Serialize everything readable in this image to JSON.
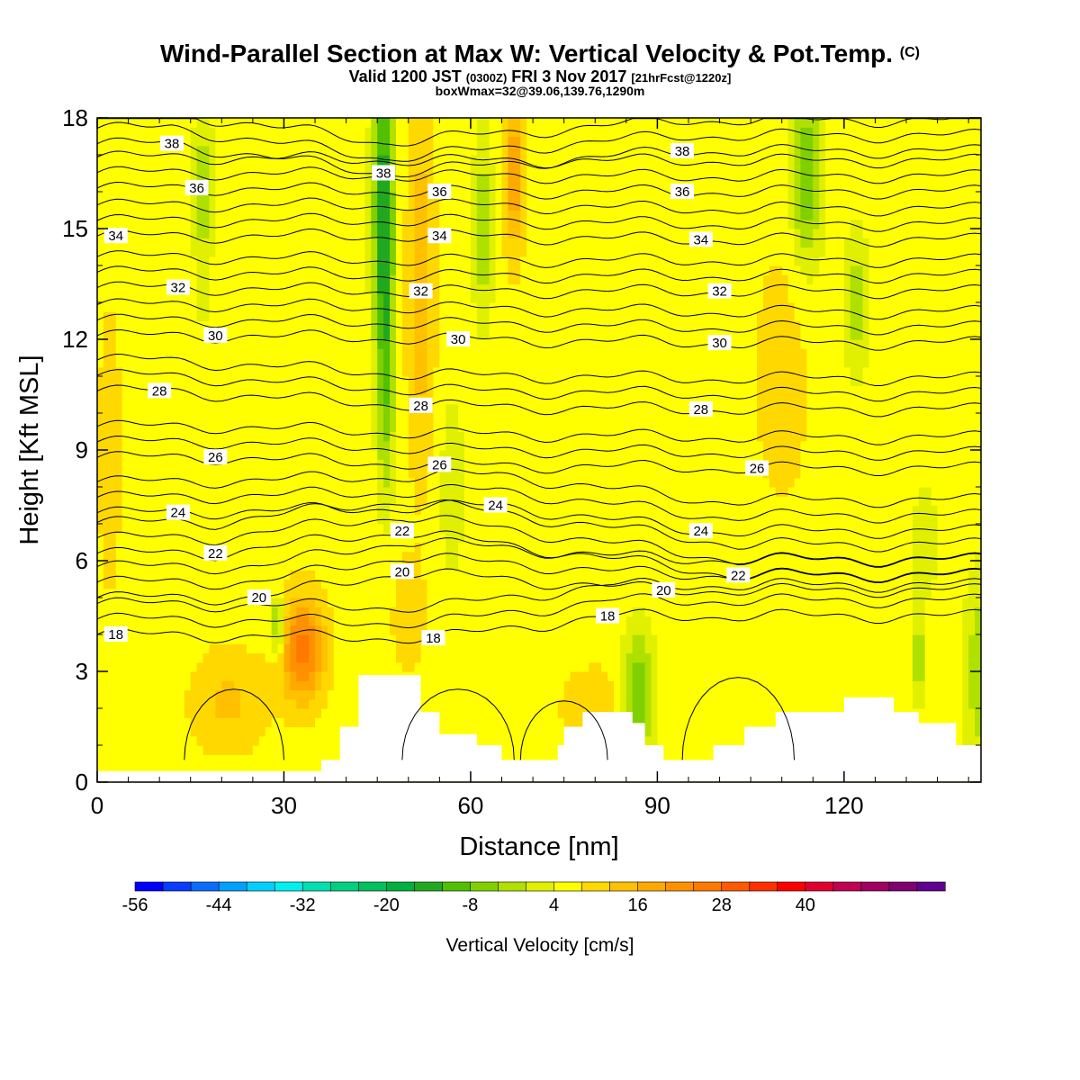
{
  "header": {
    "title": "Wind-Parallel Section at Max W: Vertical Velocity & Pot.Temp.",
    "copyright": "(C)",
    "valid_main": "Valid 1200 JST",
    "valid_utc": "(0300Z)",
    "valid_date": "FRI 3 Nov 2017",
    "forecast": "[21hrFcst@1220z]",
    "box": "boxWmax=32@39.06,139.76,1290m"
  },
  "chart_data": {
    "type": "heatmap",
    "xlabel": "Distance [nm]",
    "ylabel": "Height [Kft MSL]",
    "xlim": [
      0,
      142
    ],
    "ylim": [
      0,
      18
    ],
    "x_ticks": [
      0,
      30,
      60,
      90,
      120
    ],
    "y_ticks": [
      0,
      3,
      6,
      9,
      12,
      15,
      18
    ],
    "colorbar": {
      "label": "Vertical Velocity [cm/s]",
      "tick_labels": [
        -56,
        -44,
        -32,
        -20,
        -8,
        4,
        16,
        28,
        40
      ],
      "min": -56,
      "step": 4,
      "colors": [
        "#0000ff",
        "#0a3cff",
        "#0a6cff",
        "#00a0ff",
        "#00d0ff",
        "#00f0f0",
        "#00e0b0",
        "#00d080",
        "#00c060",
        "#00b040",
        "#20a820",
        "#50c000",
        "#80d000",
        "#b0e000",
        "#e0f000",
        "#ffff00",
        "#ffd800",
        "#ffc000",
        "#ffa800",
        "#ff9000",
        "#ff7800",
        "#ff5a00",
        "#ff3000",
        "#ff0000",
        "#e00030",
        "#c00050",
        "#a00060",
        "#800070",
        "#600090"
      ]
    },
    "series": [
      {
        "name": "Vertical Velocity",
        "description": "filled contours; background about 4-8 cm/s; updraft cores near x=33 and x=48-67; downdrafts near x=46, x=88 and x=114"
      },
      {
        "name": "Potential Temperature",
        "contour_levels": [
          18,
          20,
          22,
          24,
          26,
          28,
          30,
          32,
          34,
          36,
          38
        ]
      }
    ],
    "contour_labels": [
      {
        "x": 12,
        "y": 17.3,
        "value": 38
      },
      {
        "x": 46,
        "y": 16.5,
        "value": 38
      },
      {
        "x": 94,
        "y": 17.1,
        "value": 38
      },
      {
        "x": 16,
        "y": 16.1,
        "value": 36
      },
      {
        "x": 55,
        "y": 16.0,
        "value": 36
      },
      {
        "x": 94,
        "y": 16.0,
        "value": 36
      },
      {
        "x": 3,
        "y": 14.8,
        "value": 34
      },
      {
        "x": 55,
        "y": 14.8,
        "value": 34
      },
      {
        "x": 97,
        "y": 14.7,
        "value": 34
      },
      {
        "x": 13,
        "y": 13.4,
        "value": 32
      },
      {
        "x": 52,
        "y": 13.3,
        "value": 32
      },
      {
        "x": 100,
        "y": 13.3,
        "value": 32
      },
      {
        "x": 19,
        "y": 12.1,
        "value": 30
      },
      {
        "x": 58,
        "y": 12.0,
        "value": 30
      },
      {
        "x": 100,
        "y": 11.9,
        "value": 30
      },
      {
        "x": 10,
        "y": 10.6,
        "value": 28
      },
      {
        "x": 52,
        "y": 10.2,
        "value": 28
      },
      {
        "x": 97,
        "y": 10.1,
        "value": 28
      },
      {
        "x": 19,
        "y": 8.8,
        "value": 26
      },
      {
        "x": 55,
        "y": 8.6,
        "value": 26
      },
      {
        "x": 106,
        "y": 8.5,
        "value": 26
      },
      {
        "x": 13,
        "y": 7.3,
        "value": 24
      },
      {
        "x": 64,
        "y": 7.5,
        "value": 24
      },
      {
        "x": 97,
        "y": 6.8,
        "value": 24
      },
      {
        "x": 19,
        "y": 6.2,
        "value": 22
      },
      {
        "x": 49,
        "y": 6.8,
        "value": 22
      },
      {
        "x": 103,
        "y": 5.6,
        "value": 22
      },
      {
        "x": 26,
        "y": 5.0,
        "value": 20
      },
      {
        "x": 49,
        "y": 5.7,
        "value": 20
      },
      {
        "x": 91,
        "y": 5.2,
        "value": 20
      },
      {
        "x": 3,
        "y": 4.0,
        "value": 18
      },
      {
        "x": 54,
        "y": 3.9,
        "value": 18
      },
      {
        "x": 82,
        "y": 4.5,
        "value": 18
      }
    ],
    "terrain_heights": [
      [
        0,
        0.3
      ],
      [
        33,
        0.3
      ],
      [
        36,
        0.6
      ],
      [
        39,
        1.5
      ],
      [
        42,
        2.9
      ],
      [
        51,
        2.9
      ],
      [
        52,
        1.9
      ],
      [
        55,
        1.3
      ],
      [
        61,
        1.0
      ],
      [
        65,
        0.6
      ],
      [
        74,
        1.0
      ],
      [
        75,
        1.5
      ],
      [
        78,
        1.9
      ],
      [
        84,
        1.9
      ],
      [
        86,
        1.6
      ],
      [
        88,
        1.0
      ],
      [
        91,
        0.6
      ],
      [
        99,
        1.0
      ],
      [
        104,
        1.5
      ],
      [
        109,
        1.9
      ],
      [
        120,
        2.3
      ],
      [
        125,
        2.3
      ],
      [
        128,
        1.9
      ],
      [
        132,
        1.6
      ],
      [
        138,
        1.0
      ],
      [
        142,
        0.6
      ]
    ]
  }
}
